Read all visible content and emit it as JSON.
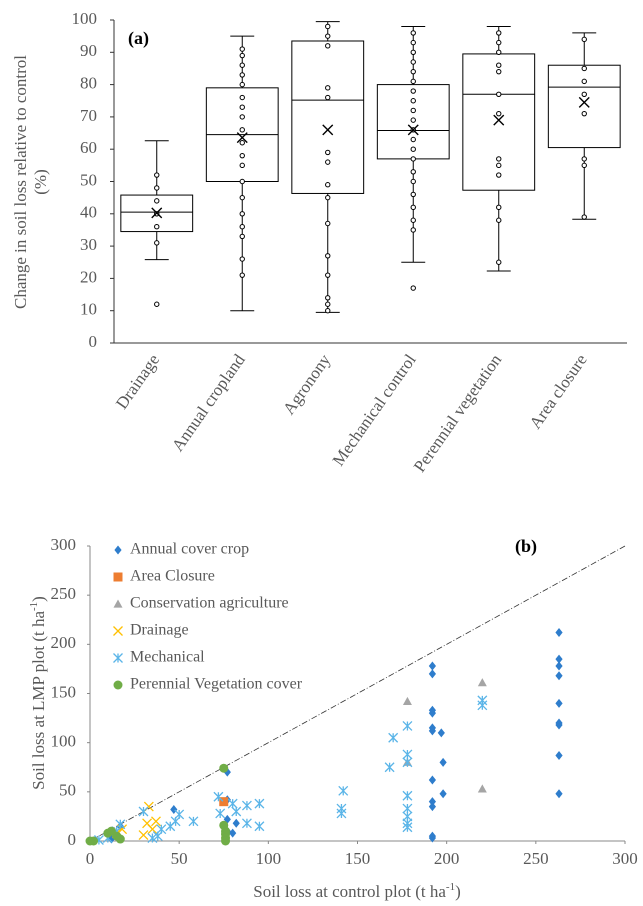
{
  "chart_data": [
    {
      "type": "box",
      "annotation": "(a)",
      "ylabel": [
        "Change in soil loss  relative to control",
        "(%)"
      ],
      "categories": [
        "Drainage",
        "Annual cropland",
        "Agronony",
        "Mechanical control",
        "Perennial vegetation",
        "Area closure"
      ],
      "boxes": [
        {
          "whislo": 25.8,
          "q1": 34.5,
          "med": 40.5,
          "q3": 45.8,
          "whishi": 62.6,
          "mean": 40.3,
          "points": [
            12,
            31,
            36,
            40,
            44,
            48,
            52
          ]
        },
        {
          "whislo": 10,
          "q1": 50,
          "med": 64.5,
          "q3": 79,
          "whishi": 95,
          "mean": 63.6,
          "points": [
            21,
            26,
            33,
            36,
            40,
            45,
            50,
            55,
            58,
            62,
            66,
            70,
            73,
            76,
            80,
            83,
            86,
            89,
            91
          ]
        },
        {
          "whislo": 9.5,
          "q1": 46.3,
          "med": 75.2,
          "q3": 93.5,
          "whishi": 99.5,
          "mean": 66,
          "points": [
            10,
            12,
            14,
            21,
            27,
            37,
            45,
            49,
            56,
            59,
            76,
            79,
            92,
            95,
            98
          ]
        },
        {
          "whislo": 25,
          "q1": 57,
          "med": 65.8,
          "q3": 80,
          "whishi": 98,
          "mean": 66,
          "points": [
            17,
            35,
            38,
            42,
            46,
            50,
            53,
            57,
            60,
            63,
            66,
            69,
            72,
            75,
            78,
            81,
            84,
            87,
            90,
            93,
            96
          ]
        },
        {
          "whislo": 22.3,
          "q1": 47.3,
          "med": 77,
          "q3": 89.5,
          "whishi": 98,
          "mean": 69,
          "points": [
            25,
            38,
            42,
            52,
            55,
            57,
            71,
            77,
            84,
            86,
            90,
            93,
            96
          ]
        },
        {
          "whislo": 38.3,
          "q1": 60.5,
          "med": 79.2,
          "q3": 86,
          "whishi": 96,
          "mean": 74.5,
          "points": [
            39,
            55,
            57,
            71,
            77,
            81,
            85,
            94
          ]
        }
      ],
      "ylim": [
        0,
        100
      ],
      "yticks": [
        0,
        10,
        20,
        30,
        40,
        50,
        60,
        70,
        80,
        90,
        100
      ]
    },
    {
      "type": "scatter",
      "annotation": "(b)",
      "xlabel": {
        "text": "Soil loss at control plot (t ha",
        "sup": "-1",
        "end": ")"
      },
      "ylabel": {
        "text": "Soil loss at LMP plot (t ha",
        "sup": "-1",
        "end": ")"
      },
      "xlim": [
        0,
        300
      ],
      "ylim": [
        0,
        300
      ],
      "xticks": [
        0,
        50,
        100,
        150,
        200,
        250,
        300
      ],
      "yticks": [
        0,
        50,
        100,
        150,
        200,
        250,
        300
      ],
      "identity_line": true,
      "legend": "top-left",
      "series": [
        {
          "name": "Annual cover crop",
          "color": "#2e7dcc",
          "marker": "diamond",
          "x": [
            192,
            192,
            192,
            192,
            192,
            192,
            192,
            192,
            192,
            192,
            192,
            197,
            198,
            198,
            263,
            263,
            263,
            263,
            263,
            263,
            263,
            263,
            263,
            77,
            77,
            77,
            77,
            82,
            80,
            47,
            17,
            15,
            12
          ],
          "y": [
            178,
            170,
            133,
            130,
            115,
            112,
            62,
            40,
            35,
            5,
            3,
            110,
            80,
            48,
            212,
            185,
            178,
            168,
            140,
            120,
            118,
            87,
            48,
            70,
            42,
            22,
            10,
            18,
            8,
            32,
            15,
            5,
            2
          ]
        },
        {
          "name": "Area Closure",
          "color": "#ed7d31",
          "marker": "square",
          "x": [
            75
          ],
          "y": [
            40
          ]
        },
        {
          "name": "Conservation agriculture",
          "color": "#a5a5a5",
          "marker": "triangle",
          "x": [
            178,
            178,
            220,
            220
          ],
          "y": [
            142,
            80,
            161,
            53
          ]
        },
        {
          "name": "Drainage",
          "color": "#ffc000",
          "marker": "x",
          "x": [
            33,
            32,
            37,
            30,
            15,
            18,
            35
          ],
          "y": [
            35,
            18,
            20,
            6,
            8,
            12,
            12
          ]
        },
        {
          "name": "Mechanical",
          "color": "#5bb5e8",
          "marker": "star",
          "x": [
            178,
            178,
            178,
            178,
            178,
            178,
            178,
            178,
            170,
            168,
            220,
            220,
            142,
            141,
            141,
            80,
            82,
            88,
            95,
            95,
            88,
            72,
            73,
            58,
            50,
            48,
            45,
            40,
            38,
            35,
            30,
            17,
            15,
            10,
            5
          ],
          "y": [
            117,
            88,
            80,
            46,
            33,
            25,
            18,
            14,
            105,
            75,
            143,
            138,
            51,
            33,
            28,
            38,
            30,
            36,
            38,
            15,
            18,
            45,
            28,
            20,
            27,
            20,
            15,
            12,
            5,
            3,
            30,
            17,
            10,
            3,
            1
          ]
        },
        {
          "name": "Perennial Vegetation cover",
          "color": "#70ad47",
          "marker": "circle",
          "x": [
            75,
            75,
            76,
            76,
            76,
            76,
            10,
            12,
            15,
            17,
            2,
            0
          ],
          "y": [
            74,
            16,
            10,
            7,
            3,
            0,
            8,
            10,
            5,
            2,
            0,
            0
          ]
        }
      ]
    }
  ]
}
